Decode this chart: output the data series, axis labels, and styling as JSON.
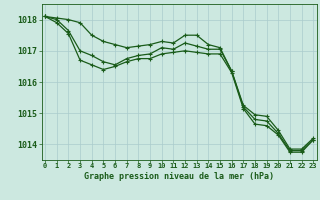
{
  "title": "Graphe pression niveau de la mer (hPa)",
  "background_color": "#cce8e0",
  "grid_color": "#aacccc",
  "line_color": "#1a5c1a",
  "ylim": [
    1013.5,
    1018.5
  ],
  "xlim": [
    -0.3,
    23.3
  ],
  "yticks": [
    1014,
    1015,
    1016,
    1017,
    1018
  ],
  "xticks": [
    0,
    1,
    2,
    3,
    4,
    5,
    6,
    7,
    8,
    9,
    10,
    11,
    12,
    13,
    14,
    15,
    16,
    17,
    18,
    19,
    20,
    21,
    22,
    23
  ],
  "series": [
    [
      1018.1,
      1018.0,
      1017.8,
      1017.1,
      1017.0,
      1016.85,
      1016.7,
      1016.85,
      1017.05,
      1017.05,
      1017.2,
      1017.2,
      1017.45,
      1017.45,
      1017.2,
      1017.1,
      1016.35,
      1015.25,
      1014.95,
      1014.85,
      1014.4,
      1013.85,
      1013.85,
      1014.15
    ],
    [
      1018.1,
      1018.0,
      1017.65,
      1017.0,
      1016.85,
      1016.65,
      1016.55,
      1016.75,
      1016.85,
      1016.9,
      1017.1,
      1017.05,
      1017.25,
      1017.15,
      1017.05,
      1017.05,
      1016.35,
      1015.2,
      1014.8,
      1014.75,
      1014.35,
      1013.8,
      1013.8,
      1014.15
    ],
    [
      1018.1,
      1017.9,
      1017.55,
      1016.7,
      1016.55,
      1016.4,
      1016.5,
      1016.65,
      1016.75,
      1016.75,
      1016.9,
      1016.95,
      1017.0,
      1016.95,
      1016.9,
      1016.9,
      1016.3,
      1015.15,
      1014.65,
      1014.6,
      1014.3,
      1013.75,
      1013.75,
      1014.15
    ]
  ],
  "series_top": [
    1018.1,
    1018.05,
    1018.0,
    1017.9,
    1017.5,
    1017.3,
    1017.2,
    1017.1,
    1017.15,
    1017.2,
    1017.3,
    1017.25,
    1017.5,
    1017.5,
    1017.2,
    1017.1,
    1016.35,
    1015.25,
    1014.95,
    1014.9,
    1014.45,
    1013.85,
    1013.85,
    1014.2
  ]
}
